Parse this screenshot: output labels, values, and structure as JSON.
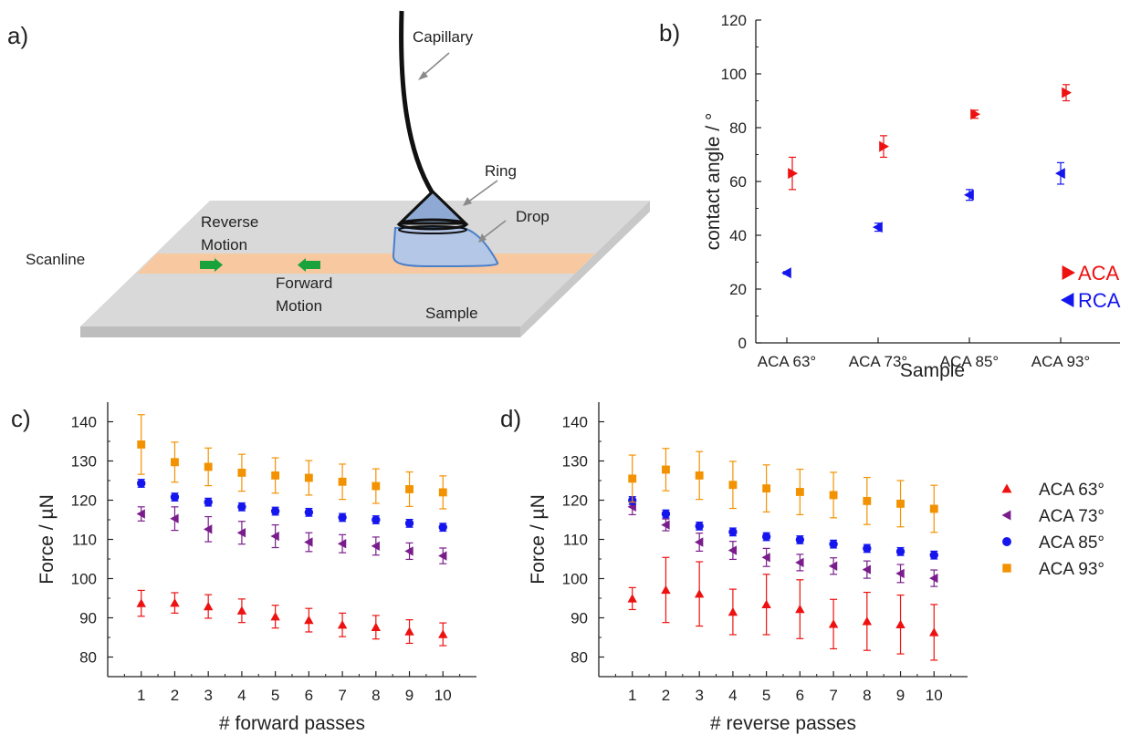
{
  "panels": {
    "a": "a)",
    "b": "b)",
    "c": "c)",
    "d": "d)"
  },
  "schematic": {
    "capillary": "Capillary",
    "ring": "Ring",
    "drop": "Drop",
    "reverse_motion": [
      "Reverse",
      "Motion"
    ],
    "forward_motion": [
      "Forward",
      "Motion"
    ],
    "scanline": "Scanline",
    "sample": "Sample",
    "colors": {
      "plate": "#d9d9d9",
      "scanline": "#f8c9a0",
      "drop": "#b4c7e7",
      "drop_outline": "#4a7fc8",
      "arrow": "#1aa33c"
    }
  },
  "chart_data": [
    {
      "id": "b",
      "type": "scatter",
      "xlabel": "Sample",
      "ylabel": "contact angle / °",
      "categories": [
        "ACA 63°",
        "ACA 73°",
        "ACA 85°",
        "ACA 93°"
      ],
      "ylim": [
        0,
        120
      ],
      "yticks": [
        0,
        20,
        40,
        60,
        80,
        100,
        120
      ],
      "series": [
        {
          "name": "ACA",
          "color": "#ee1111",
          "marker": "triangle-right",
          "values": [
            63,
            73,
            85,
            93
          ],
          "errors": [
            6,
            4,
            1.5,
            3
          ]
        },
        {
          "name": "RCA",
          "color": "#1515ee",
          "marker": "triangle-left",
          "values": [
            26,
            43,
            55,
            63
          ],
          "errors": [
            0.5,
            1.5,
            2,
            4
          ]
        }
      ]
    },
    {
      "id": "c",
      "type": "scatter",
      "xlabel": "# forward passes",
      "ylabel": "Force / µN",
      "x": [
        1,
        2,
        3,
        4,
        5,
        6,
        7,
        8,
        9,
        10
      ],
      "ylim": [
        75,
        145
      ],
      "yticks": [
        80,
        90,
        100,
        110,
        120,
        130,
        140
      ],
      "series": [
        {
          "name": "ACA 63°",
          "values": [
            93.7,
            93.8,
            92.9,
            91.8,
            90.3,
            89.4,
            88.2,
            87.6,
            86.5,
            85.8
          ],
          "errors": [
            3.3,
            2.6,
            3.0,
            3.0,
            2.9,
            3.0,
            3.0,
            3.0,
            3.0,
            2.9
          ]
        },
        {
          "name": "ACA 73°",
          "values": [
            116.5,
            115.3,
            112.6,
            111.7,
            110.8,
            109.3,
            108.9,
            108.3,
            107.0,
            105.8
          ],
          "errors": [
            1.8,
            3.0,
            3.2,
            2.9,
            2.9,
            2.4,
            2.3,
            2.3,
            2.1,
            2.0
          ]
        },
        {
          "name": "ACA 85°",
          "values": [
            124.3,
            120.8,
            119.5,
            118.3,
            117.2,
            116.9,
            115.6,
            115.0,
            114.1,
            113.1
          ],
          "errors": [
            1.0,
            1.0,
            1.0,
            1.0,
            1.0,
            1.0,
            1.0,
            1.0,
            1.0,
            1.0
          ]
        },
        {
          "name": "ACA 93°",
          "values": [
            134.2,
            129.7,
            128.5,
            127.0,
            126.3,
            125.7,
            124.7,
            123.6,
            122.8,
            122.0
          ],
          "errors": [
            7.6,
            5.1,
            4.8,
            4.7,
            4.5,
            4.4,
            4.5,
            4.4,
            4.4,
            4.2
          ]
        }
      ]
    },
    {
      "id": "d",
      "type": "scatter",
      "xlabel": "# reverse passes",
      "ylabel": "Force / µN",
      "x": [
        1,
        2,
        3,
        4,
        5,
        6,
        7,
        8,
        9,
        10
      ],
      "ylim": [
        75,
        145
      ],
      "yticks": [
        80,
        90,
        100,
        110,
        120,
        130,
        140
      ],
      "series": [
        {
          "name": "ACA 63°",
          "values": [
            94.9,
            97.1,
            96.1,
            91.5,
            93.4,
            92.2,
            88.4,
            89.1,
            88.3,
            86.3
          ],
          "errors": [
            2.8,
            8.3,
            8.2,
            5.8,
            7.7,
            7.5,
            6.3,
            7.4,
            7.5,
            7.1
          ]
        },
        {
          "name": "ACA 73°",
          "values": [
            118.3,
            113.7,
            109.3,
            107.2,
            105.4,
            104.1,
            103.2,
            102.3,
            101.3,
            100.1
          ],
          "errors": [
            2.0,
            1.5,
            2.3,
            2.3,
            2.3,
            2.1,
            2.1,
            2.2,
            2.3,
            2.1
          ]
        },
        {
          "name": "ACA 85°",
          "values": [
            119.9,
            116.5,
            113.4,
            111.9,
            110.7,
            109.9,
            108.8,
            107.7,
            106.9,
            106.0
          ],
          "errors": [
            1.0,
            1.0,
            1.0,
            1.0,
            1.0,
            1.0,
            1.0,
            1.0,
            1.0,
            1.0
          ]
        },
        {
          "name": "ACA 93°",
          "values": [
            125.5,
            127.8,
            126.3,
            123.9,
            123.0,
            122.1,
            121.3,
            119.8,
            119.1,
            117.8
          ],
          "errors": [
            6.0,
            5.4,
            6.1,
            6.0,
            6.0,
            5.8,
            5.8,
            6.0,
            5.9,
            6.0
          ]
        }
      ]
    }
  ],
  "force_legend": [
    {
      "name": "ACA 63°",
      "color": "#ee1111",
      "marker": "triangle-up"
    },
    {
      "name": "ACA 73°",
      "color": "#7a1d8c",
      "marker": "triangle-left"
    },
    {
      "name": "ACA 85°",
      "color": "#1515ee",
      "marker": "circle"
    },
    {
      "name": "ACA 93°",
      "color": "#f39200",
      "marker": "square"
    }
  ]
}
